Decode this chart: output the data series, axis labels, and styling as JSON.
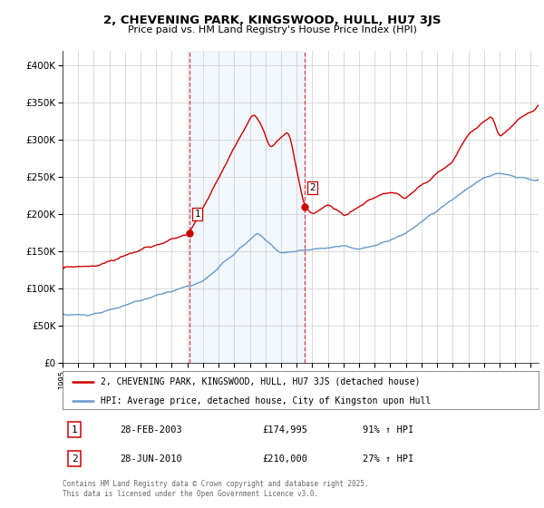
{
  "title": "2, CHEVENING PARK, KINGSWOOD, HULL, HU7 3JS",
  "subtitle": "Price paid vs. HM Land Registry's House Price Index (HPI)",
  "red_label": "2, CHEVENING PARK, KINGSWOOD, HULL, HU7 3JS (detached house)",
  "blue_label": "HPI: Average price, detached house, City of Kingston upon Hull",
  "footnote": "Contains HM Land Registry data © Crown copyright and database right 2025.\nThis data is licensed under the Open Government Licence v3.0.",
  "sale1_label": "1",
  "sale1_date": "28-FEB-2003",
  "sale1_price": "£174,995",
  "sale1_hpi": "91% ↑ HPI",
  "sale2_label": "2",
  "sale2_date": "28-JUN-2010",
  "sale2_price": "£210,000",
  "sale2_hpi": "27% ↑ HPI",
  "red_color": "#cc0000",
  "blue_color": "#6699cc",
  "shade_color": "#cce0f0",
  "ylim": [
    0,
    420000
  ],
  "yticks": [
    0,
    50000,
    100000,
    150000,
    200000,
    250000,
    300000,
    350000,
    400000
  ],
  "ytick_labels": [
    "£0",
    "£50K",
    "£100K",
    "£150K",
    "£200K",
    "£250K",
    "£300K",
    "£350K",
    "£400K"
  ],
  "sale1_x": 2003.15,
  "sale1_y": 174995,
  "sale2_x": 2010.49,
  "sale2_y": 210000,
  "xlim": [
    1995,
    2025.5
  ]
}
